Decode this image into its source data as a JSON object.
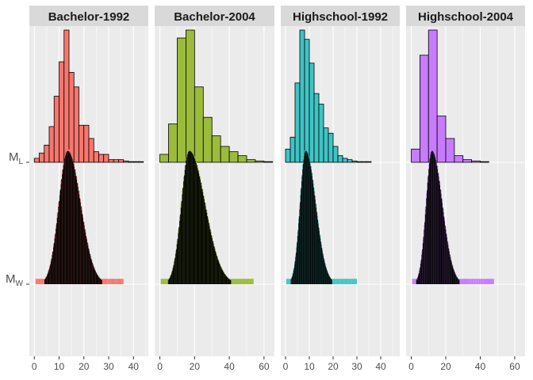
{
  "chart_data": {
    "type": "bar",
    "panel_background": "#ebebeb",
    "grid_color": "#ffffff",
    "strip_background": "#d9d9d9",
    "y_rows": [
      {
        "name": "M",
        "sub": "L"
      },
      {
        "name": "M",
        "sub": "W"
      }
    ],
    "panels": [
      {
        "title": "Bachelor-1992",
        "color": "#f8766d",
        "xlim": [
          -2,
          46
        ],
        "xticks": [
          0,
          10,
          20,
          30,
          40
        ],
        "hist": {
          "bins": [
            [
              0,
              2,
              3
            ],
            [
              2,
              4,
              7
            ],
            [
              4,
              6,
              13
            ],
            [
              6,
              8,
              27
            ],
            [
              8,
              10,
              50
            ],
            [
              10,
              12,
              76
            ],
            [
              12,
              14,
              100
            ],
            [
              14,
              16,
              68
            ],
            [
              16,
              18,
              57
            ],
            [
              18,
              20,
              28
            ],
            [
              20,
              22,
              28
            ],
            [
              22,
              24,
              18
            ],
            [
              24,
              26,
              8
            ],
            [
              26,
              28,
              6
            ],
            [
              28,
              30,
              6
            ],
            [
              30,
              32,
              2
            ],
            [
              32,
              34,
              2
            ],
            [
              34,
              36,
              2
            ],
            [
              36,
              38,
              1
            ],
            [
              38,
              40,
              0.5
            ],
            [
              40,
              42,
              0.5
            ],
            [
              42,
              44,
              0.5
            ]
          ]
        },
        "kde": {
          "peak": 13.5,
          "sd_left": 3.6,
          "sd_right": 5.2,
          "min": 0.5,
          "max": 36
        }
      },
      {
        "title": "Bachelor-2004",
        "color": "#9bbb3b",
        "xlim": [
          -3,
          66
        ],
        "xticks": [
          0,
          20,
          40,
          60
        ],
        "hist": {
          "bins": [
            [
              0,
              5,
              6
            ],
            [
              5,
              10,
              29
            ],
            [
              10,
              15,
              94
            ],
            [
              15,
              20,
              100
            ],
            [
              20,
              25,
              57
            ],
            [
              25,
              30,
              34
            ],
            [
              30,
              35,
              20
            ],
            [
              35,
              40,
              12
            ],
            [
              40,
              45,
              8
            ],
            [
              45,
              50,
              5
            ],
            [
              50,
              55,
              2
            ],
            [
              55,
              60,
              1
            ],
            [
              60,
              65,
              0.5
            ]
          ]
        },
        "kde": {
          "peak": 17,
          "sd_left": 4.6,
          "sd_right": 9.0,
          "min": 0.5,
          "max": 54
        }
      },
      {
        "title": "Highschool-1992",
        "color": "#3fc4c4",
        "xlim": [
          -2,
          48
        ],
        "xticks": [
          0,
          10,
          20,
          30,
          40
        ],
        "hist": {
          "bins": [
            [
              0,
              2,
              10
            ],
            [
              2,
              4,
              19
            ],
            [
              4,
              6,
              60
            ],
            [
              6,
              8,
              100
            ],
            [
              8,
              10,
              93
            ],
            [
              10,
              12,
              75
            ],
            [
              12,
              14,
              52
            ],
            [
              14,
              16,
              44
            ],
            [
              16,
              18,
              26
            ],
            [
              18,
              20,
              22
            ],
            [
              20,
              22,
              12
            ],
            [
              22,
              24,
              5
            ],
            [
              24,
              26,
              3
            ],
            [
              26,
              28,
              2
            ],
            [
              28,
              30,
              1
            ],
            [
              30,
              32,
              0.5
            ],
            [
              32,
              34,
              0.5
            ],
            [
              34,
              36,
              0.5
            ]
          ]
        },
        "kde": {
          "peak": 8.5,
          "sd_left": 2.4,
          "sd_right": 4.2,
          "min": 0.3,
          "max": 30
        }
      },
      {
        "title": "Highschool-2004",
        "color": "#c77cff",
        "xlim": [
          -3,
          66
        ],
        "xticks": [
          0,
          20,
          40,
          60
        ],
        "hist": {
          "bins": [
            [
              0,
              5,
              10
            ],
            [
              5,
              10,
              81
            ],
            [
              10,
              15,
              100
            ],
            [
              15,
              20,
              35
            ],
            [
              20,
              25,
              18
            ],
            [
              25,
              30,
              5
            ],
            [
              30,
              35,
              2
            ],
            [
              35,
              40,
              1
            ],
            [
              40,
              45,
              0.5
            ]
          ]
        },
        "kde": {
          "peak": 12,
          "sd_left": 3.4,
          "sd_right": 6.0,
          "min": 0.5,
          "max": 48
        }
      }
    ]
  }
}
